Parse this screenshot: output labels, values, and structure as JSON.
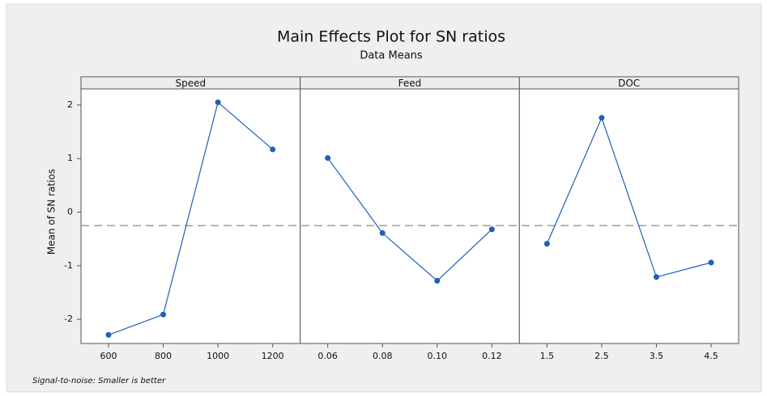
{
  "chart_data": {
    "type": "line",
    "title": "Main Effects Plot for SN ratios",
    "subtitle": "Data Means",
    "y_label": "Mean of SN ratios",
    "footnote": "Signal-to-noise: Smaller is better",
    "color": "#1f5fb4",
    "ylim": [
      -2.45,
      2.3
    ],
    "yticks": [
      -2,
      -1,
      0,
      1,
      2
    ],
    "reference_line": -0.25,
    "panels": [
      {
        "name": "Speed",
        "categories": [
          "600",
          "800",
          "1000",
          "1200"
        ],
        "values": [
          -2.29,
          -1.91,
          2.05,
          1.17
        ]
      },
      {
        "name": "Feed",
        "categories": [
          "0.06",
          "0.08",
          "0.10",
          "0.12"
        ],
        "values": [
          1.01,
          -0.39,
          -1.28,
          -0.32
        ]
      },
      {
        "name": "DOC",
        "categories": [
          "1.5",
          "2.5",
          "3.5",
          "4.5"
        ],
        "values": [
          -0.59,
          1.76,
          -1.21,
          -0.94
        ]
      }
    ]
  }
}
